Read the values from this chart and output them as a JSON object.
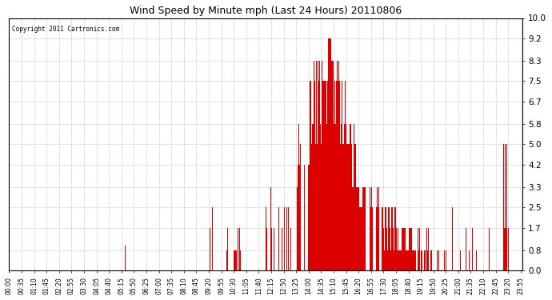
{
  "title": "Wind Speed by Minute mph (Last 24 Hours) 20110806",
  "copyright_text": "Copyright 2011 Cartronics.com",
  "bar_color": "#dd0000",
  "background_color": "#ffffff",
  "plot_background": "#ffffff",
  "yticks": [
    0.0,
    0.8,
    1.7,
    2.5,
    3.3,
    4.2,
    5.0,
    5.8,
    6.7,
    7.5,
    8.3,
    9.2,
    10.0
  ],
  "ylim": [
    0,
    10.5
  ],
  "xtick_positions": [
    0,
    35,
    70,
    105,
    140,
    175,
    210,
    245,
    280,
    315,
    350,
    385,
    420,
    455,
    490,
    525,
    560,
    595,
    630,
    665,
    700,
    735,
    770,
    805,
    840,
    875,
    910,
    945,
    980,
    1015,
    1050,
    1085,
    1120,
    1155,
    1190,
    1225,
    1260,
    1295,
    1330,
    1365,
    1400,
    1435
  ],
  "xtick_labels": [
    "00:00",
    "00:35",
    "01:10",
    "01:45",
    "02:20",
    "02:55",
    "03:30",
    "04:05",
    "04:40",
    "05:15",
    "05:50",
    "06:25",
    "07:00",
    "07:35",
    "08:10",
    "08:45",
    "09:20",
    "09:55",
    "10:30",
    "11:05",
    "11:40",
    "12:15",
    "12:50",
    "13:25",
    "14:00",
    "14:35",
    "15:10",
    "15:45",
    "16:20",
    "16:55",
    "17:30",
    "18:05",
    "18:40",
    "19:15",
    "19:50",
    "20:25",
    "21:00",
    "21:35",
    "22:10",
    "22:45",
    "23:20",
    "23:55"
  ]
}
